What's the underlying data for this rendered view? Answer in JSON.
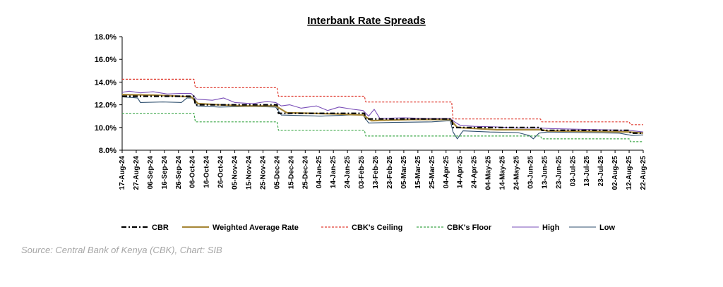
{
  "source_note": "Source: Central Bank of Kenya (CBK), Chart: SIB",
  "chart_data": {
    "type": "line",
    "title": "Interbank Rate Spreads",
    "xlabel": "",
    "ylabel": "",
    "ylim": [
      8.0,
      18.0
    ],
    "y_ticks": [
      "8.0%",
      "10.0%",
      "12.0%",
      "14.0%",
      "16.0%",
      "18.0%"
    ],
    "y_tick_values": [
      8,
      10,
      12,
      14,
      16,
      18
    ],
    "x_start": "2024-08-17",
    "x_end": "2025-08-22",
    "x_ticks": [
      "17-Aug-24",
      "27-Aug-24",
      "06-Sep-24",
      "16-Sep-24",
      "26-Sep-24",
      "06-Oct-24",
      "16-Oct-24",
      "26-Oct-24",
      "05-Nov-24",
      "15-Nov-24",
      "25-Nov-24",
      "05-Dec-24",
      "15-Dec-24",
      "25-Dec-24",
      "04-Jan-25",
      "14-Jan-25",
      "24-Jan-25",
      "03-Feb-25",
      "13-Feb-25",
      "23-Feb-25",
      "05-Mar-25",
      "15-Mar-25",
      "25-Mar-25",
      "04-Apr-25",
      "14-Apr-25",
      "24-Apr-25",
      "04-May-25",
      "14-May-25",
      "24-May-25",
      "03-Jun-25",
      "13-Jun-25",
      "23-Jun-25",
      "03-Jul-25",
      "13-Jul-25",
      "23-Jul-25",
      "02-Aug-25",
      "12-Aug-25",
      "22-Aug-25"
    ],
    "grid": false,
    "legend_position": "bottom",
    "colors": {
      "cbr": "#000000",
      "weighted": "#a8893a",
      "ceiling": "#e03c31",
      "floor": "#3ea84a",
      "high": "#7a4fb8",
      "low": "#2e4f6e"
    },
    "series": [
      {
        "name": "CBR",
        "key": "cbr",
        "style": "dashdot",
        "points": [
          [
            "2024-08-17",
            12.75
          ],
          [
            "2024-10-07",
            12.75
          ],
          [
            "2024-10-08",
            12.0
          ],
          [
            "2024-12-05",
            12.0
          ],
          [
            "2024-12-06",
            11.25
          ],
          [
            "2025-02-05",
            11.25
          ],
          [
            "2025-02-06",
            10.75
          ],
          [
            "2025-04-08",
            10.75
          ],
          [
            "2025-04-09",
            10.0
          ],
          [
            "2025-06-10",
            10.0
          ],
          [
            "2025-06-11",
            9.75
          ],
          [
            "2025-08-12",
            9.75
          ],
          [
            "2025-08-13",
            9.5
          ],
          [
            "2025-08-22",
            9.5
          ]
        ]
      },
      {
        "name": "Weighted Average Rate",
        "key": "weighted",
        "style": "solid",
        "points": [
          [
            "2024-08-17",
            12.9
          ],
          [
            "2024-09-10",
            12.85
          ],
          [
            "2024-10-05",
            12.7
          ],
          [
            "2024-10-10",
            12.1
          ],
          [
            "2024-11-10",
            11.9
          ],
          [
            "2024-12-04",
            11.9
          ],
          [
            "2024-12-12",
            11.3
          ],
          [
            "2025-01-15",
            11.2
          ],
          [
            "2025-02-04",
            11.1
          ],
          [
            "2025-02-10",
            10.6
          ],
          [
            "2025-03-10",
            10.7
          ],
          [
            "2025-04-07",
            10.7
          ],
          [
            "2025-04-12",
            10.0
          ],
          [
            "2025-05-10",
            9.8
          ],
          [
            "2025-06-10",
            9.8
          ],
          [
            "2025-06-15",
            9.7
          ],
          [
            "2025-07-20",
            9.65
          ],
          [
            "2025-08-12",
            9.6
          ],
          [
            "2025-08-22",
            9.5
          ]
        ]
      },
      {
        "name": "CBK's Ceiling",
        "key": "ceiling",
        "style": "dashed",
        "points": [
          [
            "2024-08-17",
            14.25
          ],
          [
            "2024-10-07",
            14.25
          ],
          [
            "2024-10-08",
            13.5
          ],
          [
            "2024-12-05",
            13.5
          ],
          [
            "2024-12-06",
            12.75
          ],
          [
            "2025-02-05",
            12.75
          ],
          [
            "2025-02-06",
            12.25
          ],
          [
            "2025-04-08",
            12.25
          ],
          [
            "2025-04-09",
            10.75
          ],
          [
            "2025-06-10",
            10.75
          ],
          [
            "2025-06-11",
            10.5
          ],
          [
            "2025-08-12",
            10.5
          ],
          [
            "2025-08-13",
            10.25
          ],
          [
            "2025-08-22",
            10.25
          ]
        ]
      },
      {
        "name": "CBK's Floor",
        "key": "floor",
        "style": "dashed",
        "points": [
          [
            "2024-08-17",
            11.25
          ],
          [
            "2024-10-07",
            11.25
          ],
          [
            "2024-10-08",
            10.5
          ],
          [
            "2024-12-05",
            10.5
          ],
          [
            "2024-12-06",
            9.75
          ],
          [
            "2025-02-05",
            9.75
          ],
          [
            "2025-02-06",
            9.25
          ],
          [
            "2025-04-08",
            9.25
          ],
          [
            "2025-04-09",
            9.25
          ],
          [
            "2025-06-10",
            9.25
          ],
          [
            "2025-06-11",
            9.0
          ],
          [
            "2025-08-12",
            9.0
          ],
          [
            "2025-08-13",
            8.75
          ],
          [
            "2025-08-22",
            8.75
          ]
        ]
      },
      {
        "name": "High",
        "key": "high",
        "style": "solid",
        "points": [
          [
            "2024-08-17",
            13.1
          ],
          [
            "2024-08-22",
            13.2
          ],
          [
            "2024-08-30",
            13.05
          ],
          [
            "2024-09-08",
            13.15
          ],
          [
            "2024-09-18",
            12.95
          ],
          [
            "2024-09-28",
            13.0
          ],
          [
            "2024-10-05",
            13.0
          ],
          [
            "2024-10-09",
            12.5
          ],
          [
            "2024-10-20",
            12.4
          ],
          [
            "2024-10-28",
            12.6
          ],
          [
            "2024-11-05",
            12.2
          ],
          [
            "2024-11-18",
            12.1
          ],
          [
            "2024-11-28",
            12.3
          ],
          [
            "2024-12-04",
            12.2
          ],
          [
            "2024-12-08",
            11.9
          ],
          [
            "2024-12-14",
            12.0
          ],
          [
            "2024-12-22",
            11.7
          ],
          [
            "2025-01-02",
            11.9
          ],
          [
            "2025-01-10",
            11.5
          ],
          [
            "2025-01-18",
            11.8
          ],
          [
            "2025-01-28",
            11.6
          ],
          [
            "2025-02-04",
            11.5
          ],
          [
            "2025-02-08",
            11.0
          ],
          [
            "2025-02-12",
            11.6
          ],
          [
            "2025-02-16",
            10.8
          ],
          [
            "2025-03-05",
            10.85
          ],
          [
            "2025-03-20",
            10.8
          ],
          [
            "2025-04-07",
            10.8
          ],
          [
            "2025-04-10",
            10.5
          ],
          [
            "2025-04-14",
            10.2
          ],
          [
            "2025-04-24",
            10.1
          ],
          [
            "2025-05-10",
            10.05
          ],
          [
            "2025-05-24",
            9.95
          ],
          [
            "2025-06-10",
            9.95
          ],
          [
            "2025-06-18",
            9.9
          ],
          [
            "2025-07-05",
            9.85
          ],
          [
            "2025-07-25",
            9.8
          ],
          [
            "2025-08-12",
            9.75
          ],
          [
            "2025-08-22",
            9.6
          ]
        ]
      },
      {
        "name": "Low",
        "key": "low",
        "style": "solid",
        "points": [
          [
            "2024-08-17",
            12.7
          ],
          [
            "2024-08-28",
            12.6
          ],
          [
            "2024-08-30",
            12.2
          ],
          [
            "2024-09-15",
            12.25
          ],
          [
            "2024-09-28",
            12.2
          ],
          [
            "2024-10-02",
            12.6
          ],
          [
            "2024-10-07",
            12.6
          ],
          [
            "2024-10-09",
            11.9
          ],
          [
            "2024-10-25",
            11.8
          ],
          [
            "2024-11-15",
            11.85
          ],
          [
            "2024-12-04",
            11.8
          ],
          [
            "2024-12-08",
            11.1
          ],
          [
            "2025-01-05",
            11.0
          ],
          [
            "2025-01-25",
            11.1
          ],
          [
            "2025-02-04",
            11.1
          ],
          [
            "2025-02-08",
            10.4
          ],
          [
            "2025-02-25",
            10.45
          ],
          [
            "2025-03-25",
            10.5
          ],
          [
            "2025-04-07",
            10.6
          ],
          [
            "2025-04-09",
            9.6
          ],
          [
            "2025-04-12",
            9.0
          ],
          [
            "2025-04-16",
            9.7
          ],
          [
            "2025-05-05",
            9.6
          ],
          [
            "2025-05-25",
            9.55
          ],
          [
            "2025-06-02",
            9.3
          ],
          [
            "2025-06-05",
            9.0
          ],
          [
            "2025-06-09",
            9.5
          ],
          [
            "2025-06-15",
            9.6
          ],
          [
            "2025-07-10",
            9.55
          ],
          [
            "2025-08-05",
            9.5
          ],
          [
            "2025-08-14",
            9.3
          ],
          [
            "2025-08-22",
            9.35
          ]
        ]
      }
    ]
  }
}
